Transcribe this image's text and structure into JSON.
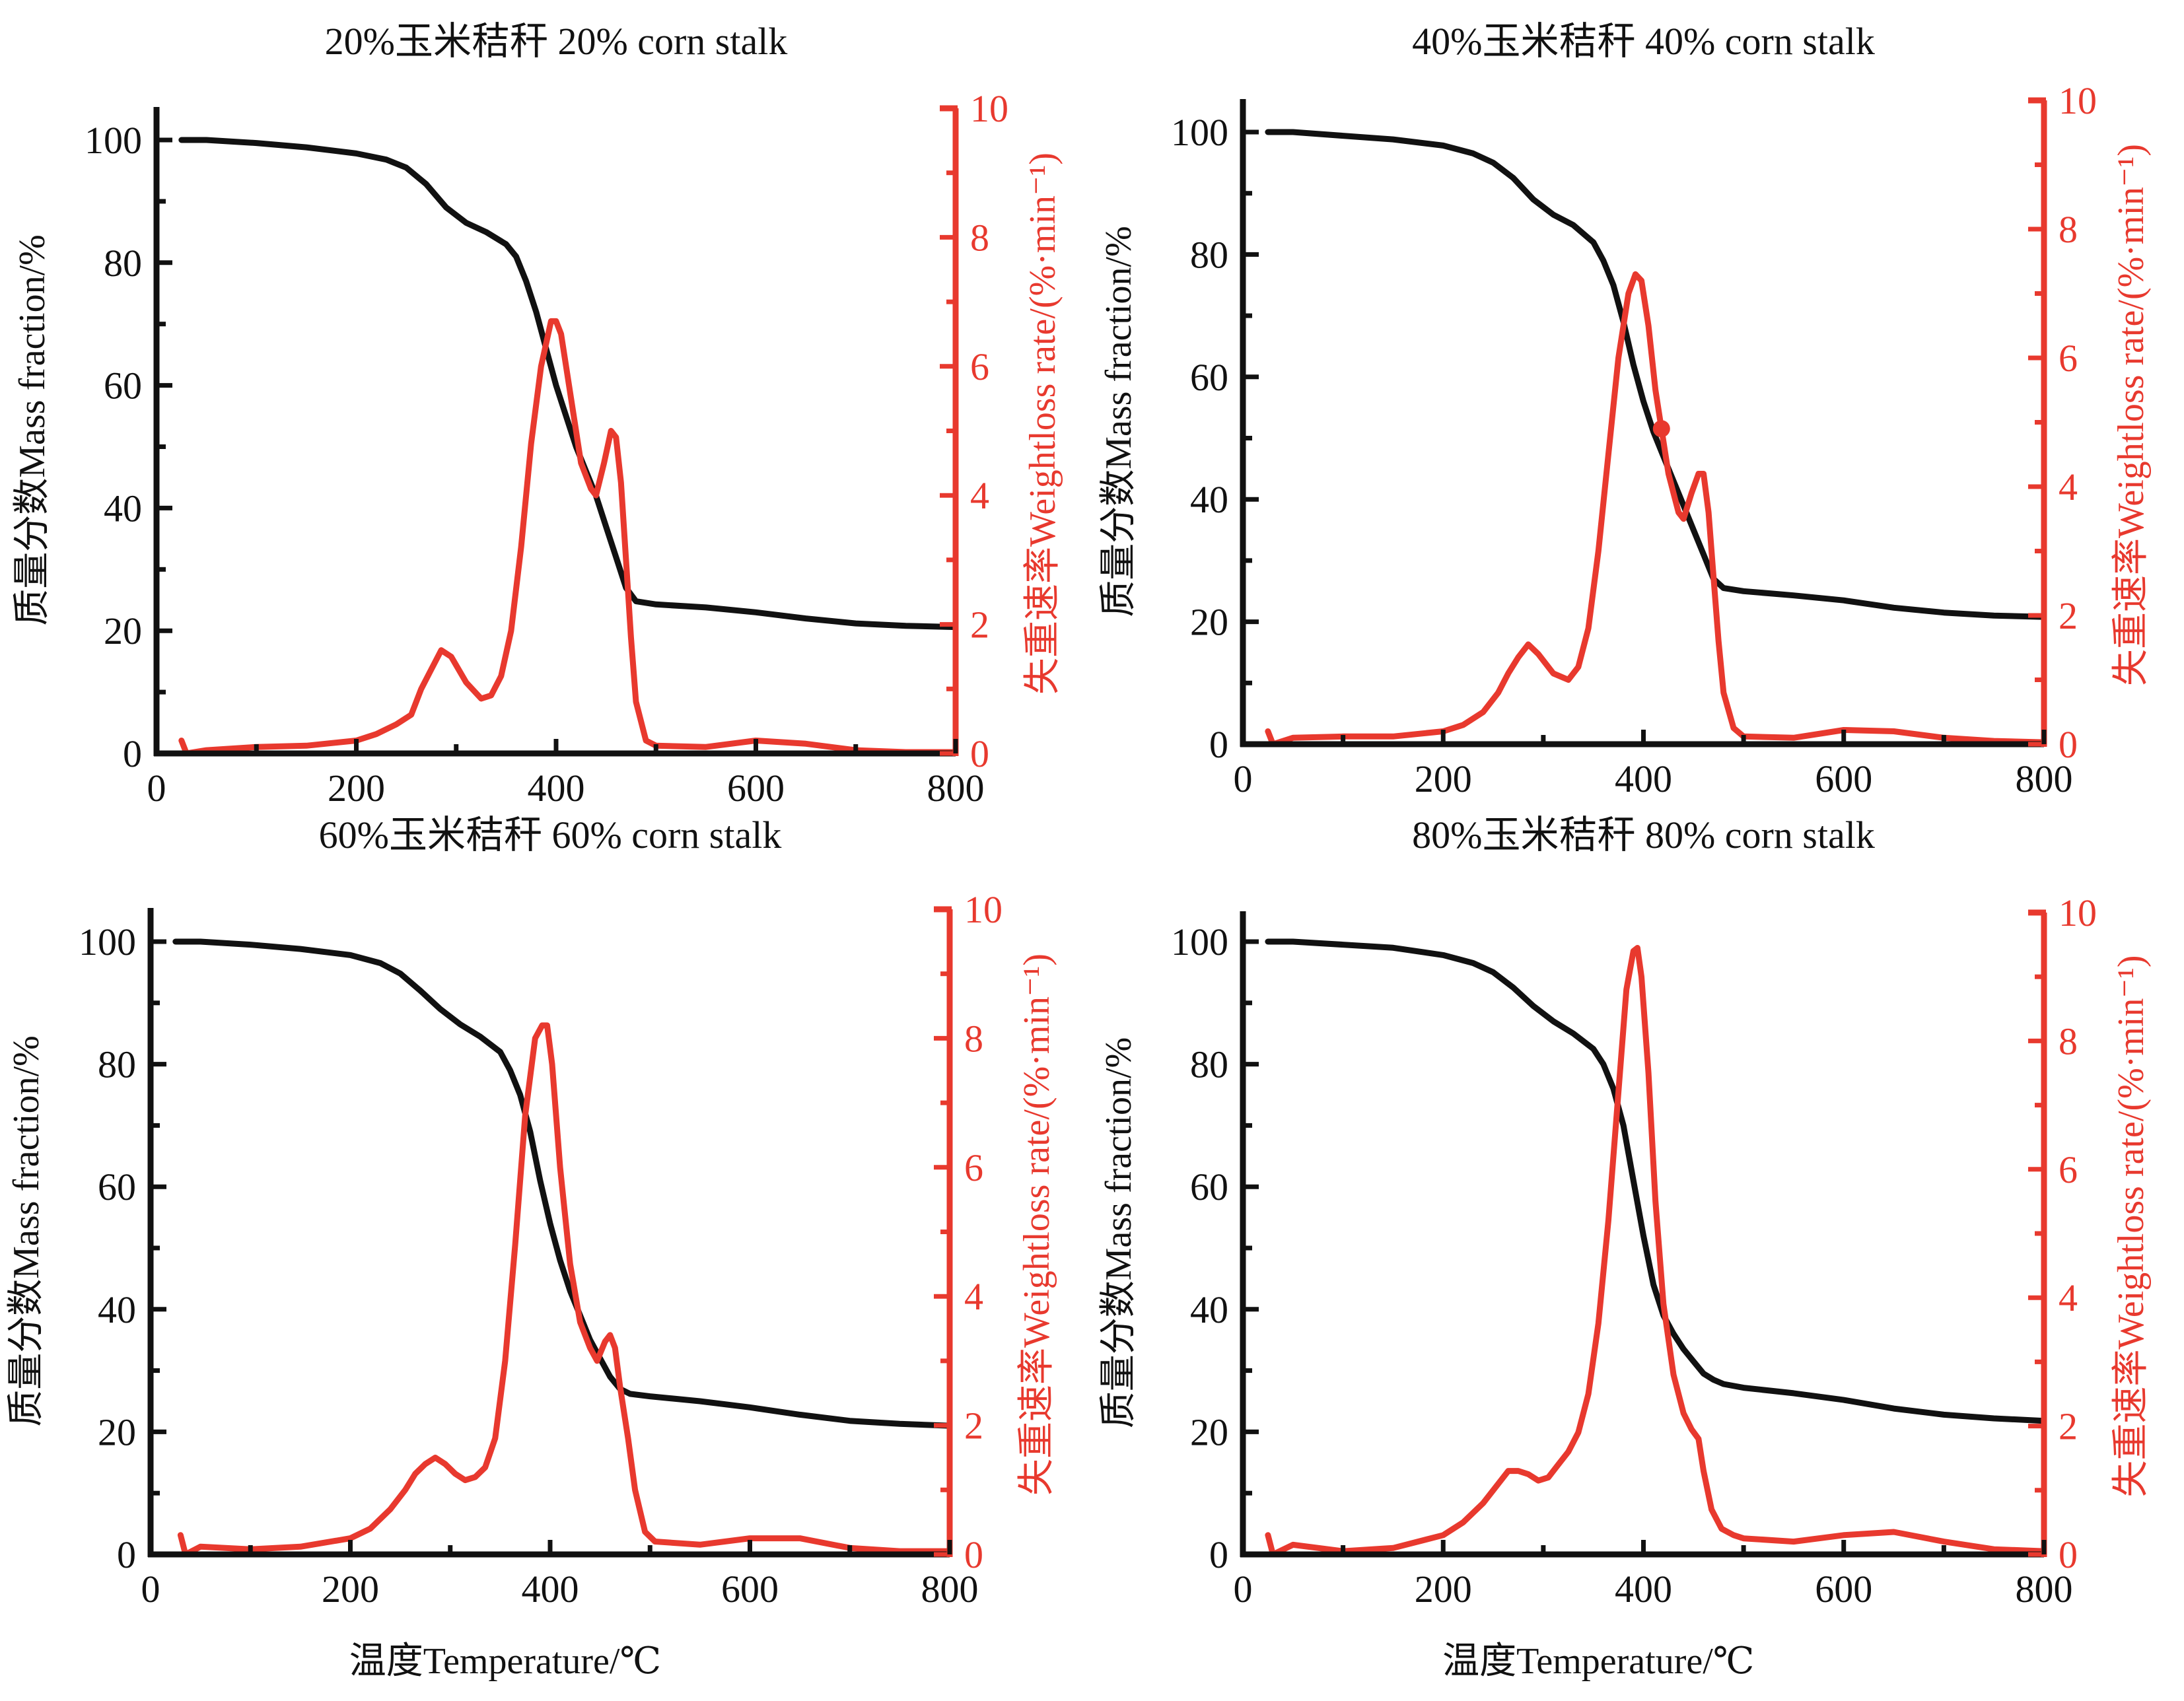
{
  "colors": {
    "mass": "#111111",
    "rate": "#E8392E",
    "background": "#FFFFFF"
  },
  "axes": {
    "x_label": "温度Temperature/℃",
    "y_left_label": "质量分数Mass fraction/%",
    "y_right_label": "失重速率Weightloss rate/(%·min⁻¹)",
    "x_ticks": [
      "0",
      "200",
      "400",
      "600",
      "800"
    ],
    "y_left_ticks": [
      "0",
      "20",
      "40",
      "60",
      "80",
      "100"
    ],
    "y_right_ticks": [
      "0",
      "2",
      "4",
      "6",
      "8",
      "10"
    ]
  },
  "chart_data": [
    {
      "type": "line",
      "title": "20%玉米秸秆  20% corn stalk",
      "xlabel": "",
      "ylabel_left": "质量分数Mass fraction/%",
      "ylabel_right": "失重速率Weightloss rate/(%·min⁻¹)",
      "xlim": [
        0,
        800
      ],
      "ylim_left": [
        0,
        105
      ],
      "ylim_right": [
        0,
        10
      ],
      "x_ticks": [
        0,
        200,
        400,
        600,
        800
      ],
      "y_left_ticks": [
        0,
        20,
        40,
        60,
        80,
        100
      ],
      "y_right_ticks": [
        0,
        2,
        4,
        6,
        8,
        10
      ],
      "series": [
        {
          "name": "Mass fraction",
          "axis": "left",
          "color": "#111111",
          "x": [
            25,
            50,
            100,
            150,
            200,
            230,
            250,
            270,
            290,
            310,
            330,
            350,
            360,
            370,
            380,
            390,
            400,
            410,
            420,
            430,
            440,
            450,
            460,
            470,
            480,
            500,
            550,
            600,
            650,
            700,
            750,
            800
          ],
          "y": [
            100,
            100,
            99.5,
            98.8,
            97.8,
            96.8,
            95.5,
            92.8,
            89,
            86.5,
            85,
            83,
            81,
            77,
            72,
            66,
            60,
            55,
            50,
            46,
            42,
            37,
            32,
            27,
            24.8,
            24.3,
            23.8,
            23,
            22,
            21.2,
            20.8,
            20.6
          ]
        },
        {
          "name": "Weightloss rate",
          "axis": "right",
          "color": "#E8392E",
          "x": [
            25,
            30,
            50,
            100,
            150,
            200,
            220,
            240,
            255,
            265,
            275,
            285,
            295,
            310,
            325,
            335,
            345,
            355,
            365,
            375,
            385,
            395,
            400,
            405,
            415,
            425,
            435,
            440,
            448,
            455,
            460,
            465,
            470,
            475,
            480,
            490,
            500,
            550,
            600,
            650,
            700,
            750,
            800
          ],
          "y": [
            0.2,
            0.0,
            0.05,
            0.1,
            0.12,
            0.2,
            0.3,
            0.45,
            0.6,
            1.0,
            1.3,
            1.6,
            1.5,
            1.1,
            0.85,
            0.9,
            1.2,
            1.9,
            3.2,
            4.8,
            6.0,
            6.7,
            6.7,
            6.5,
            5.5,
            4.5,
            4.1,
            4.0,
            4.5,
            5.0,
            4.9,
            4.2,
            3.0,
            1.8,
            0.8,
            0.2,
            0.12,
            0.1,
            0.2,
            0.15,
            0.05,
            0.02,
            0.02
          ]
        }
      ]
    },
    {
      "type": "line",
      "title": "40%玉米秸秆  40% corn stalk",
      "xlabel": "",
      "ylabel_left": "质量分数Mass fraction/%",
      "ylabel_right": "失重速率Weightloss rate/(%·min⁻¹)",
      "xlim": [
        0,
        800
      ],
      "ylim_left": [
        0,
        105
      ],
      "ylim_right": [
        0,
        10
      ],
      "x_ticks": [
        0,
        200,
        400,
        600,
        800
      ],
      "y_left_ticks": [
        0,
        20,
        40,
        60,
        80,
        100
      ],
      "y_right_ticks": [
        0,
        2,
        4,
        6,
        8,
        10
      ],
      "series": [
        {
          "name": "Mass fraction",
          "axis": "left",
          "color": "#111111",
          "x": [
            25,
            50,
            100,
            150,
            200,
            230,
            250,
            270,
            290,
            310,
            330,
            350,
            360,
            370,
            380,
            390,
            400,
            410,
            420,
            430,
            440,
            450,
            460,
            470,
            480,
            500,
            550,
            600,
            650,
            700,
            750,
            800
          ],
          "y": [
            100,
            100,
            99.4,
            98.8,
            97.8,
            96.5,
            95,
            92.5,
            89,
            86.5,
            84.8,
            82,
            79,
            75,
            69,
            62,
            56,
            51,
            47,
            43,
            39,
            35,
            31,
            27,
            25.5,
            25,
            24.3,
            23.5,
            22.3,
            21.5,
            21,
            20.8
          ]
        },
        {
          "name": "Weightloss rate",
          "axis": "right",
          "color": "#E8392E",
          "x": [
            25,
            30,
            50,
            100,
            150,
            200,
            220,
            240,
            255,
            265,
            275,
            285,
            295,
            310,
            325,
            335,
            345,
            355,
            365,
            375,
            385,
            392,
            398,
            405,
            412,
            418,
            425,
            435,
            440,
            448,
            455,
            460,
            465,
            470,
            475,
            480,
            490,
            500,
            550,
            600,
            650,
            700,
            750,
            800
          ],
          "y": [
            0.2,
            0.0,
            0.1,
            0.12,
            0.12,
            0.2,
            0.3,
            0.5,
            0.8,
            1.1,
            1.35,
            1.55,
            1.4,
            1.1,
            1.0,
            1.2,
            1.8,
            3.0,
            4.5,
            6.0,
            7.0,
            7.3,
            7.2,
            6.5,
            5.5,
            4.9,
            4.2,
            3.6,
            3.5,
            3.9,
            4.2,
            4.2,
            3.6,
            2.6,
            1.6,
            0.8,
            0.25,
            0.12,
            0.1,
            0.22,
            0.2,
            0.1,
            0.05,
            0.03
          ]
        }
      ],
      "annotations": [
        {
          "type": "marker",
          "series": "Weightloss rate",
          "x": 418,
          "y": 4.9
        }
      ]
    },
    {
      "type": "line",
      "title": "60%玉米秸秆  60% corn stalk",
      "xlabel": "温度Temperature/℃",
      "ylabel_left": "质量分数Mass fraction/%",
      "ylabel_right": "失重速率Weightloss rate/(%·min⁻¹)",
      "xlim": [
        0,
        800
      ],
      "ylim_left": [
        0,
        105
      ],
      "ylim_right": [
        0,
        10
      ],
      "x_ticks": [
        0,
        200,
        400,
        600,
        800
      ],
      "y_left_ticks": [
        0,
        20,
        40,
        60,
        80,
        100
      ],
      "y_right_ticks": [
        0,
        2,
        4,
        6,
        8,
        10
      ],
      "series": [
        {
          "name": "Mass fraction",
          "axis": "left",
          "color": "#111111",
          "x": [
            25,
            50,
            100,
            150,
            200,
            230,
            250,
            270,
            290,
            310,
            330,
            350,
            360,
            370,
            380,
            390,
            400,
            410,
            420,
            430,
            440,
            450,
            460,
            470,
            480,
            500,
            550,
            600,
            650,
            700,
            750,
            800
          ],
          "y": [
            100,
            100,
            99.5,
            98.8,
            97.8,
            96.5,
            94.8,
            92,
            89,
            86.5,
            84.5,
            82,
            79,
            75,
            69,
            61,
            54,
            48,
            43,
            39,
            35,
            32,
            29,
            27,
            26.2,
            25.8,
            25,
            24,
            22.8,
            21.8,
            21.3,
            21
          ]
        },
        {
          "name": "Weightloss rate",
          "axis": "right",
          "color": "#E8392E",
          "x": [
            30,
            35,
            50,
            100,
            150,
            200,
            220,
            240,
            255,
            265,
            275,
            285,
            295,
            305,
            315,
            325,
            335,
            345,
            355,
            365,
            375,
            385,
            392,
            397,
            402,
            410,
            420,
            430,
            440,
            447,
            455,
            460,
            465,
            470,
            478,
            485,
            495,
            505,
            550,
            600,
            650,
            700,
            750,
            800
          ],
          "y": [
            0.3,
            0.0,
            0.12,
            0.08,
            0.12,
            0.25,
            0.4,
            0.7,
            1.0,
            1.25,
            1.4,
            1.5,
            1.4,
            1.25,
            1.15,
            1.2,
            1.35,
            1.8,
            3.0,
            4.8,
            6.8,
            8.0,
            8.2,
            8.2,
            7.6,
            6.0,
            4.5,
            3.6,
            3.2,
            3.0,
            3.3,
            3.4,
            3.2,
            2.6,
            1.8,
            1.0,
            0.35,
            0.2,
            0.15,
            0.25,
            0.25,
            0.1,
            0.05,
            0.05
          ]
        }
      ]
    },
    {
      "type": "line",
      "title": "80%玉米秸秆  80% corn stalk",
      "xlabel": "温度Temperature/℃",
      "ylabel_left": "质量分数Mass fraction/%",
      "ylabel_right": "失重速率Weightloss rate/(%·min⁻¹)",
      "xlim": [
        0,
        800
      ],
      "ylim_left": [
        0,
        105
      ],
      "ylim_right": [
        0,
        10
      ],
      "x_ticks": [
        0,
        200,
        400,
        600,
        800
      ],
      "y_left_ticks": [
        0,
        20,
        40,
        60,
        80,
        100
      ],
      "y_right_ticks": [
        0,
        2,
        4,
        6,
        8,
        10
      ],
      "series": [
        {
          "name": "Mass fraction",
          "axis": "left",
          "color": "#111111",
          "x": [
            25,
            50,
            100,
            150,
            200,
            230,
            250,
            270,
            290,
            310,
            330,
            350,
            360,
            370,
            380,
            390,
            400,
            410,
            420,
            430,
            440,
            450,
            460,
            470,
            480,
            500,
            550,
            600,
            650,
            700,
            750,
            800
          ],
          "y": [
            100,
            100,
            99.5,
            99,
            97.8,
            96.5,
            95,
            92.5,
            89.5,
            87,
            85,
            82.5,
            80,
            76,
            70,
            61,
            52,
            44,
            39,
            36,
            33.5,
            31.5,
            29.5,
            28.5,
            27.8,
            27.2,
            26.3,
            25.2,
            23.8,
            22.8,
            22.2,
            21.8
          ]
        },
        {
          "name": "Weightloss rate",
          "axis": "right",
          "color": "#E8392E",
          "x": [
            25,
            30,
            50,
            100,
            150,
            200,
            220,
            240,
            255,
            265,
            275,
            285,
            295,
            305,
            315,
            325,
            335,
            345,
            355,
            365,
            375,
            383,
            390,
            394,
            398,
            405,
            412,
            420,
            430,
            440,
            448,
            455,
            460,
            468,
            478,
            490,
            500,
            550,
            600,
            650,
            700,
            750,
            800
          ],
          "y": [
            0.3,
            0.0,
            0.15,
            0.05,
            0.1,
            0.3,
            0.5,
            0.8,
            1.1,
            1.3,
            1.3,
            1.25,
            1.15,
            1.2,
            1.4,
            1.6,
            1.9,
            2.5,
            3.6,
            5.2,
            7.2,
            8.8,
            9.4,
            9.45,
            9.0,
            7.5,
            5.5,
            3.9,
            2.8,
            2.2,
            1.95,
            1.8,
            1.3,
            0.7,
            0.4,
            0.3,
            0.25,
            0.2,
            0.3,
            0.35,
            0.2,
            0.08,
            0.05
          ]
        }
      ]
    }
  ]
}
